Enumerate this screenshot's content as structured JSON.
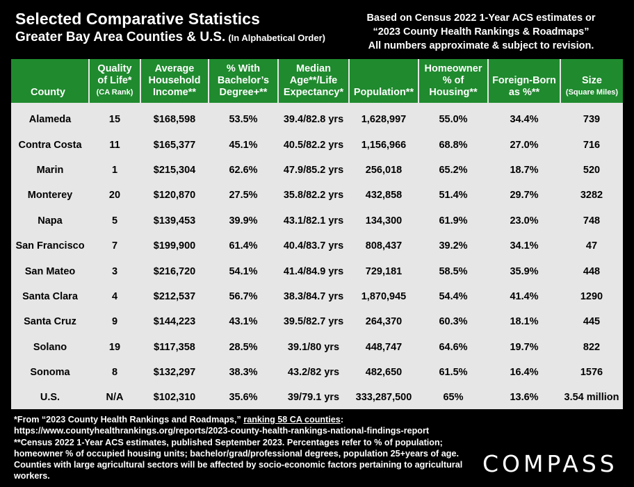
{
  "header": {
    "title": "Selected Comparative Statistics",
    "subtitle": "Greater Bay Area Counties & U.S.",
    "subtitle_small": "(In Alphabetical Order)",
    "note_lines": [
      "Based on Census 2022 1-Year ACS estimates or",
      "“2023 County Health Rankings & Roadmaps”",
      "All numbers approximate & subject to revision."
    ]
  },
  "table": {
    "columns": [
      {
        "lines": [
          "County"
        ],
        "small": ""
      },
      {
        "lines": [
          "Quality",
          "of Life*"
        ],
        "small": "(CA Rank)"
      },
      {
        "lines": [
          "Average",
          "Household",
          "Income**"
        ],
        "small": ""
      },
      {
        "lines": [
          "% With",
          "Bachelor’s",
          "Degree+**"
        ],
        "small": ""
      },
      {
        "lines": [
          "Median",
          "Age**/Life",
          "Expectancy*"
        ],
        "small": ""
      },
      {
        "lines": [
          "Population**"
        ],
        "small": ""
      },
      {
        "lines": [
          "Homeowner",
          "% of",
          "Housing**"
        ],
        "small": ""
      },
      {
        "lines": [
          "Foreign-Born",
          "as %**"
        ],
        "small": ""
      },
      {
        "lines": [
          "Size"
        ],
        "small": "(Square Miles)"
      }
    ],
    "rows": [
      [
        "Alameda",
        "15",
        "$168,598",
        "53.5%",
        "39.4/82.8 yrs",
        "1,628,997",
        "55.0%",
        "34.4%",
        "739"
      ],
      [
        "Contra Costa",
        "11",
        "$165,377",
        "45.1%",
        "40.5/82.2 yrs",
        "1,156,966",
        "68.8%",
        "27.0%",
        "716"
      ],
      [
        "Marin",
        "1",
        "$215,304",
        "62.6%",
        "47.9/85.2 yrs",
        "256,018",
        "65.2%",
        "18.7%",
        "520"
      ],
      [
        "Monterey",
        "20",
        "$120,870",
        "27.5%",
        "35.8/82.2 yrs",
        "432,858",
        "51.4%",
        "29.7%",
        "3282"
      ],
      [
        "Napa",
        "5",
        "$139,453",
        "39.9%",
        "43.1/82.1 yrs",
        "134,300",
        "61.9%",
        "23.0%",
        "748"
      ],
      [
        "San Francisco",
        "7",
        "$199,900",
        "61.4%",
        "40.4/83.7 yrs",
        "808,437",
        "39.2%",
        "34.1%",
        "47"
      ],
      [
        "San Mateo",
        "3",
        "$216,720",
        "54.1%",
        "41.4/84.9 yrs",
        "729,181",
        "58.5%",
        "35.9%",
        "448"
      ],
      [
        "Santa Clara",
        "4",
        "$212,537",
        "56.7%",
        "38.3/84.7 yrs",
        "1,870,945",
        "54.4%",
        "41.4%",
        "1290"
      ],
      [
        "Santa Cruz",
        "9",
        "$144,223",
        "43.1%",
        "39.5/82.7 yrs",
        "264,370",
        "60.3%",
        "18.1%",
        "445"
      ],
      [
        "Solano",
        "19",
        "$117,358",
        "28.5%",
        "39.1/80 yrs",
        "448,747",
        "64.6%",
        "19.7%",
        "822"
      ],
      [
        "Sonoma",
        "8",
        "$132,297",
        "38.3%",
        "43.2/82 yrs",
        "482,650",
        "61.5%",
        "16.4%",
        "1576"
      ],
      [
        "U.S.",
        "N/A",
        "$102,310",
        "35.6%",
        "39/79.1 yrs",
        "333,287,500",
        "65%",
        "13.6%",
        "3.54 million"
      ]
    ]
  },
  "footer": {
    "line1_prefix": "*From “2023 County Health Rankings and Roadmaps,” ",
    "line1_link": "ranking 58 CA counties",
    "line1_suffix": ":",
    "line2": "https://www.countyhealthrankings.org/reports/2023-county-health-rankings-national-findings-report",
    "line3": "**Census 2022 1-Year ACS estimates, published September 2023. Percentages refer to % of population; homeowner % of occupied housing units; bachelor/grad/professional degrees, population 25+years of age. Counties with large agricultural sectors will be affected by socio-economic factors pertaining to agricultural workers."
  },
  "logo": "COMPASS"
}
